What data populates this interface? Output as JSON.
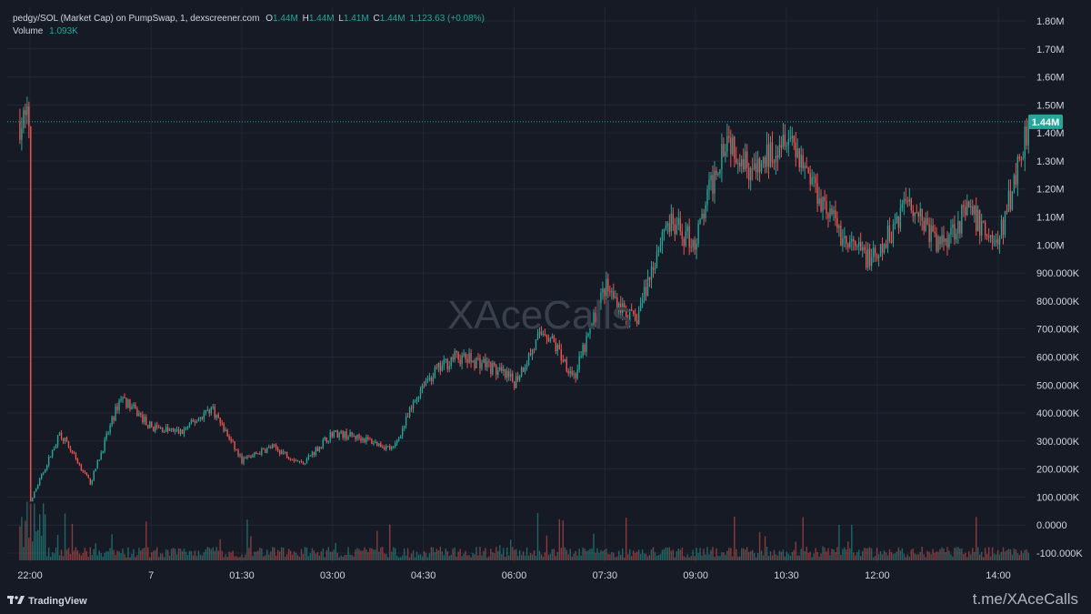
{
  "header": {
    "title": "pedgy/SOL (Market Cap) on PumpSwap, 1, dexscreener.com",
    "o_label": "O",
    "o_value": "1.44M",
    "h_label": "H",
    "h_value": "1.44M",
    "l_label": "L",
    "l_value": "1.41M",
    "c_label": "C",
    "c_value": "1.44M",
    "change": "1,123.63 (+0.08%)",
    "volume_label": "Volume",
    "volume_value": "1.093K"
  },
  "watermark": "XAceCalls",
  "branding": {
    "tradingview": "TradingView",
    "telegram": "t.me/XAceCalls"
  },
  "colors": {
    "up": "#26a69a",
    "down": "#ef5350",
    "background": "#161a25",
    "grid": "#232735"
  },
  "chart_data": {
    "type": "candlestick",
    "y_axis_ticks": [
      "1.80M",
      "1.70M",
      "1.60M",
      "1.50M",
      "1.40M",
      "1.30M",
      "1.20M",
      "1.10M",
      "1.00M",
      "900.000K",
      "800.000K",
      "700.000K",
      "600.000K",
      "500.000K",
      "400.000K",
      "300.000K",
      "200.000K",
      "100.000K",
      "0.0000",
      "-100.000K"
    ],
    "y_axis_values": [
      1800000,
      1700000,
      1600000,
      1500000,
      1400000,
      1300000,
      1200000,
      1100000,
      1000000,
      900000,
      800000,
      700000,
      600000,
      500000,
      400000,
      300000,
      200000,
      100000,
      0,
      -100000
    ],
    "x_axis_ticks": [
      "22:00",
      "7",
      "01:30",
      "03:00",
      "04:30",
      "06:00",
      "07:30",
      "09:00",
      "10:30",
      "12:00",
      "14:00"
    ],
    "current_price_label": "1.44M",
    "current_price": 1440000,
    "trend_x": [
      "22:00",
      "22:30",
      "23:00",
      "23:30",
      "00:00",
      "00:30",
      "01:00",
      "01:30",
      "02:00",
      "02:30",
      "03:00",
      "03:30",
      "04:00",
      "04:30",
      "05:00",
      "05:30",
      "06:00",
      "06:30",
      "07:00",
      "07:30",
      "08:00",
      "08:30",
      "09:00",
      "09:30",
      "10:00",
      "10:30",
      "11:00",
      "11:30",
      "12:00",
      "12:30",
      "13:00",
      "13:30",
      "14:00",
      "14:30"
    ],
    "trend_y": [
      80000,
      330000,
      150000,
      460000,
      350000,
      330000,
      420000,
      230000,
      280000,
      220000,
      330000,
      310000,
      270000,
      510000,
      600000,
      580000,
      510000,
      700000,
      530000,
      850000,
      720000,
      1080000,
      1010000,
      1400000,
      1250000,
      1420000,
      1200000,
      1000000,
      940000,
      1180000,
      1000000,
      1120000,
      1000000,
      1440000
    ]
  }
}
